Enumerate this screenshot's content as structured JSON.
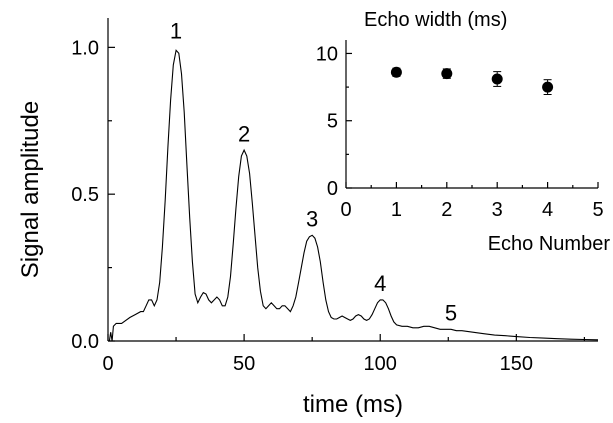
{
  "chart_data": [
    {
      "type": "line",
      "xlabel": "time (ms)",
      "ylabel": "Signal amplitude",
      "xlim": [
        0,
        180
      ],
      "ylim": [
        0.0,
        1.1
      ],
      "x_ticks": [
        0,
        50,
        100,
        150
      ],
      "y_ticks": [
        0.0,
        0.5,
        1.0
      ],
      "x_tick_labels": [
        "0",
        "50",
        "100",
        "150"
      ],
      "y_tick_labels": [
        "0.0",
        "0.5",
        "1.0"
      ],
      "grid": false,
      "series": [
        {
          "color": "#000000",
          "points": [
            [
              0,
              0.0
            ],
            [
              0.5,
              0.0
            ],
            [
              1,
              0.03
            ],
            [
              1.5,
              0.0
            ],
            [
              2,
              0.05
            ],
            [
              3,
              0.06
            ],
            [
              5,
              0.06
            ],
            [
              8,
              0.08
            ],
            [
              10,
              0.09
            ],
            [
              12,
              0.1
            ],
            [
              13,
              0.1
            ],
            [
              14,
              0.12
            ],
            [
              15,
              0.14
            ],
            [
              16,
              0.14
            ],
            [
              17,
              0.12
            ],
            [
              18,
              0.14
            ],
            [
              19,
              0.2
            ],
            [
              20,
              0.32
            ],
            [
              21,
              0.48
            ],
            [
              22,
              0.66
            ],
            [
              23,
              0.82
            ],
            [
              24,
              0.94
            ],
            [
              25,
              0.99
            ],
            [
              26,
              0.98
            ],
            [
              27,
              0.91
            ],
            [
              28,
              0.78
            ],
            [
              29,
              0.6
            ],
            [
              30,
              0.42
            ],
            [
              31,
              0.27
            ],
            [
              32,
              0.16
            ],
            [
              33,
              0.13
            ],
            [
              34,
              0.15
            ],
            [
              35,
              0.165
            ],
            [
              36,
              0.16
            ],
            [
              37,
              0.14
            ],
            [
              38,
              0.13
            ],
            [
              39,
              0.14
            ],
            [
              40,
              0.15
            ],
            [
              41,
              0.14
            ],
            [
              42,
              0.12
            ],
            [
              43,
              0.12
            ],
            [
              44,
              0.15
            ],
            [
              45,
              0.22
            ],
            [
              46,
              0.33
            ],
            [
              47,
              0.45
            ],
            [
              48,
              0.56
            ],
            [
              49,
              0.63
            ],
            [
              50,
              0.65
            ],
            [
              51,
              0.63
            ],
            [
              52,
              0.57
            ],
            [
              53,
              0.47
            ],
            [
              54,
              0.36
            ],
            [
              55,
              0.25
            ],
            [
              56,
              0.17
            ],
            [
              57,
              0.12
            ],
            [
              58,
              0.11
            ],
            [
              59,
              0.12
            ],
            [
              60,
              0.13
            ],
            [
              61,
              0.12
            ],
            [
              62,
              0.11
            ],
            [
              63,
              0.11
            ],
            [
              64,
              0.12
            ],
            [
              65,
              0.12
            ],
            [
              66,
              0.11
            ],
            [
              67,
              0.1
            ],
            [
              68,
              0.12
            ],
            [
              69,
              0.15
            ],
            [
              70,
              0.2
            ],
            [
              71,
              0.25
            ],
            [
              72,
              0.3
            ],
            [
              73,
              0.34
            ],
            [
              74,
              0.355
            ],
            [
              75,
              0.36
            ],
            [
              76,
              0.35
            ],
            [
              77,
              0.32
            ],
            [
              78,
              0.27
            ],
            [
              79,
              0.2
            ],
            [
              80,
              0.14
            ],
            [
              81,
              0.1
            ],
            [
              82,
              0.08
            ],
            [
              83,
              0.075
            ],
            [
              84,
              0.075
            ],
            [
              85,
              0.08
            ],
            [
              86,
              0.085
            ],
            [
              87,
              0.08
            ],
            [
              88,
              0.075
            ],
            [
              89,
              0.07
            ],
            [
              90,
              0.075
            ],
            [
              91,
              0.085
            ],
            [
              92,
              0.09
            ],
            [
              93,
              0.085
            ],
            [
              94,
              0.075
            ],
            [
              95,
              0.07
            ],
            [
              96,
              0.075
            ],
            [
              97,
              0.09
            ],
            [
              98,
              0.11
            ],
            [
              99,
              0.13
            ],
            [
              100,
              0.14
            ],
            [
              101,
              0.14
            ],
            [
              102,
              0.13
            ],
            [
              103,
              0.11
            ],
            [
              104,
              0.085
            ],
            [
              105,
              0.065
            ],
            [
              106,
              0.055
            ],
            [
              108,
              0.05
            ],
            [
              110,
              0.05
            ],
            [
              112,
              0.045
            ],
            [
              114,
              0.045
            ],
            [
              116,
              0.05
            ],
            [
              118,
              0.05
            ],
            [
              120,
              0.045
            ],
            [
              122,
              0.04
            ],
            [
              124,
              0.04
            ],
            [
              126,
              0.04
            ],
            [
              128,
              0.035
            ],
            [
              130,
              0.035
            ],
            [
              134,
              0.03
            ],
            [
              138,
              0.025
            ],
            [
              142,
              0.02
            ],
            [
              146,
              0.018
            ],
            [
              150,
              0.015
            ],
            [
              155,
              0.012
            ],
            [
              160,
              0.01
            ],
            [
              165,
              0.008
            ],
            [
              170,
              0.006
            ],
            [
              175,
              0.005
            ],
            [
              180,
              0.004
            ]
          ]
        }
      ],
      "annotations": [
        {
          "text": "1",
          "x": 25,
          "y": 1.03
        },
        {
          "text": "2",
          "x": 50,
          "y": 0.68
        },
        {
          "text": "3",
          "x": 75,
          "y": 0.39
        },
        {
          "text": "4",
          "x": 100,
          "y": 0.17
        },
        {
          "text": "5",
          "x": 126,
          "y": 0.07
        }
      ]
    },
    {
      "type": "scatter",
      "title": "Echo width (ms)",
      "xlabel": "Echo Number",
      "ylabel": "",
      "xlim": [
        0,
        5
      ],
      "ylim": [
        0,
        11
      ],
      "x_ticks": [
        0,
        1,
        2,
        3,
        4,
        5
      ],
      "y_ticks": [
        0,
        5,
        10
      ],
      "x_tick_labels": [
        "0",
        "1",
        "2",
        "3",
        "4",
        "5"
      ],
      "y_tick_labels": [
        "0",
        "5",
        "10"
      ],
      "grid": false,
      "legend": "none",
      "series": [
        {
          "color": "#000000",
          "x": [
            1,
            2,
            3,
            4
          ],
          "y": [
            8.6,
            8.5,
            8.1,
            7.5
          ],
          "error": [
            0.3,
            0.35,
            0.55,
            0.55
          ]
        }
      ]
    }
  ]
}
